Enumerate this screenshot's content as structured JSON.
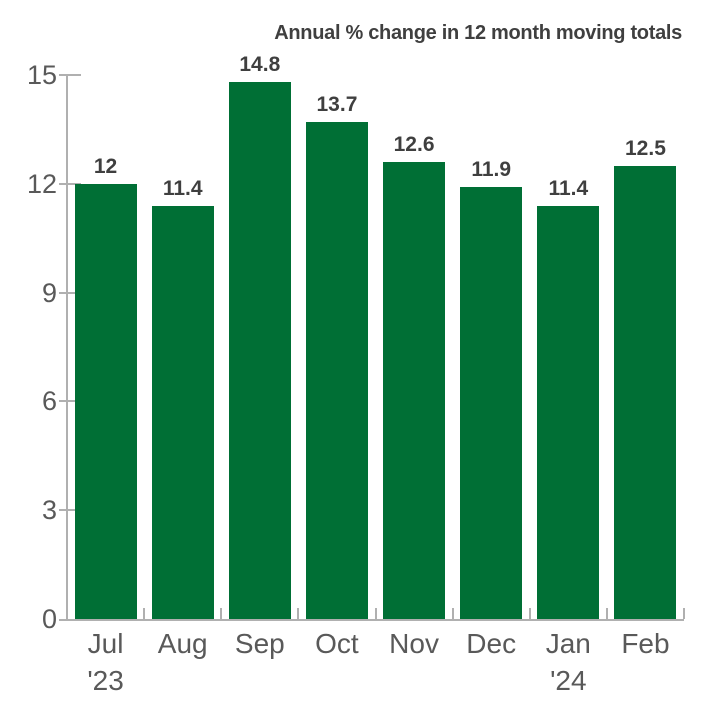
{
  "chart_data": {
    "type": "bar",
    "title": "Annual % change in 12 month moving totals",
    "categories": [
      "Jul",
      "Aug",
      "Sep",
      "Oct",
      "Nov",
      "Dec",
      "Jan",
      "Feb"
    ],
    "category_sublabels": [
      "'23",
      "",
      "",
      "",
      "",
      "",
      "'24",
      ""
    ],
    "values": [
      12,
      11.4,
      14.8,
      13.7,
      12.6,
      11.9,
      11.4,
      12.5
    ],
    "value_labels": [
      "12",
      "11.4",
      "14.8",
      "13.7",
      "12.6",
      "11.9",
      "11.4",
      "12.5"
    ],
    "xlabel": "",
    "ylabel": "",
    "ylim": [
      0,
      15
    ],
    "yticks": [
      0,
      3,
      6,
      9,
      12,
      15
    ],
    "grid": false,
    "legend": null
  },
  "colors": {
    "bar": "#006f35",
    "axis": "#b0b0b0",
    "tick_label": "#595959",
    "value_label": "#3f3f3f",
    "title": "#3f3f3f",
    "background": "#ffffff"
  }
}
